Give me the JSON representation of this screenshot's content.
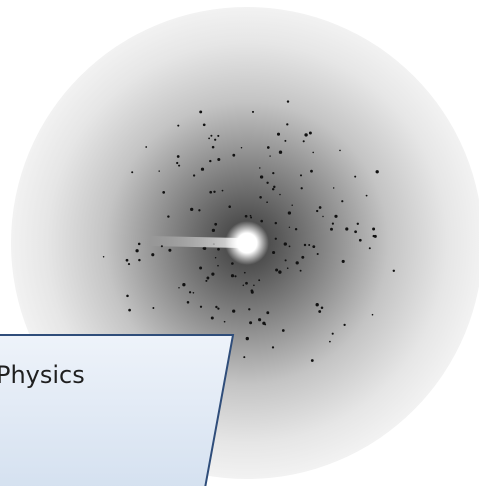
{
  "label": "Physics"
}
